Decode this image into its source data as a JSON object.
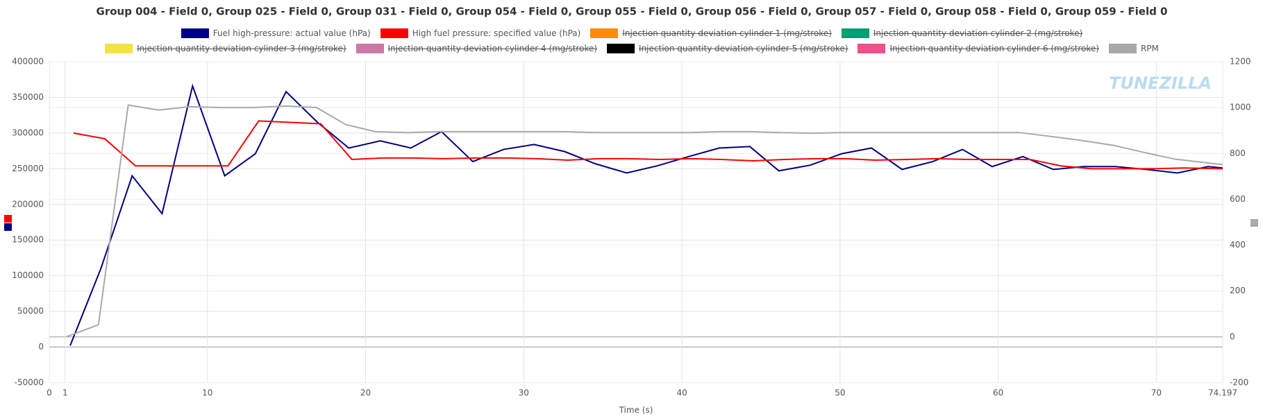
{
  "chart_data": {
    "type": "line",
    "title": "Group 004 - Field 0, Group 025 - Field 0, Group 031 - Field 0, Group 054 - Field 0, Group 055 - Field 0, Group 056 - Field 0, Group 057 - Field 0, Group 058 - Field 0, Group 059 - Field 0",
    "x_label": "Time (s)",
    "watermark": "TUNEZILLA",
    "xlim": [
      0,
      74.197
    ],
    "xticks": [
      0,
      1,
      10,
      20,
      30,
      40,
      50,
      60,
      70,
      74.197
    ],
    "ylim": [
      -50000,
      400000
    ],
    "yticks": [
      -50000,
      0,
      50000,
      100000,
      150000,
      200000,
      250000,
      300000,
      350000,
      400000
    ],
    "y2lim": [
      -200,
      1200
    ],
    "y2ticks": [
      -200,
      0,
      200,
      400,
      600,
      800,
      1000,
      1200
    ],
    "grid": true,
    "series": [
      {
        "name": "Fuel high-pressure: actual value (hPa)",
        "color": "#000080",
        "visible": true,
        "x": [
          1.32,
          3.26,
          5.24,
          7.13,
          9.06,
          11.09,
          13.03,
          14.97,
          16.96,
          18.94,
          20.93,
          22.86,
          24.8,
          26.78,
          28.72,
          30.65,
          32.59,
          34.52,
          36.51,
          38.44,
          40.43,
          42.36,
          44.3,
          46.13,
          48.12,
          50.1,
          51.99,
          53.92,
          55.86,
          57.74,
          59.62,
          61.56,
          63.49,
          65.38,
          67.41,
          69.35,
          71.33,
          73.27,
          74.197
        ],
        "values": [
          2000,
          110000,
          240000,
          187000,
          366000,
          240000,
          271000,
          358000,
          315000,
          279000,
          289000,
          279000,
          302000,
          260000,
          277000,
          284000,
          274000,
          257000,
          244000,
          254000,
          267000,
          279000,
          281000,
          247000,
          255000,
          271000,
          279000,
          249000,
          260000,
          277000,
          253000,
          267000,
          249000,
          253000,
          253000,
          249000,
          244000,
          253000,
          251000
        ]
      },
      {
        "name": "High fuel pressure: specified value (hPa)",
        "color": "#ff0000",
        "visible": true,
        "x": [
          1.53,
          3.51,
          5.45,
          7.43,
          9.37,
          11.3,
          13.24,
          15.22,
          17.16,
          19.14,
          21.08,
          23.01,
          25.0,
          26.93,
          28.87,
          30.86,
          32.79,
          34.73,
          36.66,
          38.65,
          40.58,
          42.52,
          44.5,
          46.44,
          48.37,
          50.31,
          52.24,
          54.23,
          56.16,
          58.1,
          60.03,
          62.02,
          63.95,
          65.89,
          67.82,
          69.81,
          71.74,
          74.197
        ],
        "values": [
          300000,
          292000,
          254000,
          254000,
          254000,
          254000,
          317000,
          315000,
          313000,
          263000,
          265000,
          265000,
          264000,
          265000,
          265000,
          264000,
          262000,
          264000,
          264000,
          263000,
          264000,
          263000,
          261000,
          263000,
          264000,
          264000,
          262000,
          263000,
          264000,
          263000,
          263000,
          263000,
          254000,
          250000,
          250000,
          250000,
          251000,
          250000
        ]
      },
      {
        "name": "Injection quantity deviation cylinder 1 (mg/stroke)",
        "color": "#ff8c00",
        "visible": false
      },
      {
        "name": "Injection quantity deviation cylinder 2 (mg/stroke)",
        "color": "#009e73",
        "visible": false
      },
      {
        "name": "Injection quantity deviation cylinder 3 (mg/stroke)",
        "color": "#f0e442",
        "visible": false
      },
      {
        "name": "Injection quantity deviation cylinder 4 (mg/stroke)",
        "color": "#cc79a7",
        "visible": false
      },
      {
        "name": "Injection quantity deviation cylinder 5 (mg/stroke)",
        "color": "#000000",
        "visible": false
      },
      {
        "name": "Injection quantity deviation cylinder 6 (mg/stroke)",
        "color": "#f0508c",
        "visible": false
      },
      {
        "name": "RPM",
        "color": "#a9a9a9",
        "visible": true,
        "axis": "y2",
        "x": [
          1.07,
          3.11,
          4.99,
          6.92,
          8.91,
          10.9,
          12.93,
          14.97,
          16.9,
          18.74,
          20.62,
          22.66,
          24.64,
          26.68,
          28.72,
          30.75,
          32.59,
          34.57,
          36.56,
          38.54,
          40.53,
          42.46,
          44.35,
          46.23,
          48.22,
          50.15,
          52.14,
          54.12,
          56.11,
          58.1,
          60.18,
          61.35,
          63.34,
          65.33,
          67.31,
          69.25,
          71.18,
          74.197
        ],
        "values": [
          0,
          53,
          1011,
          989,
          1004,
          1000,
          1000,
          1007,
          1000,
          926,
          895,
          891,
          895,
          895,
          895,
          895,
          895,
          891,
          891,
          891,
          891,
          895,
          895,
          891,
          888,
          891,
          891,
          891,
          891,
          891,
          891,
          891,
          874,
          856,
          835,
          804,
          775,
          751
        ]
      }
    ]
  }
}
